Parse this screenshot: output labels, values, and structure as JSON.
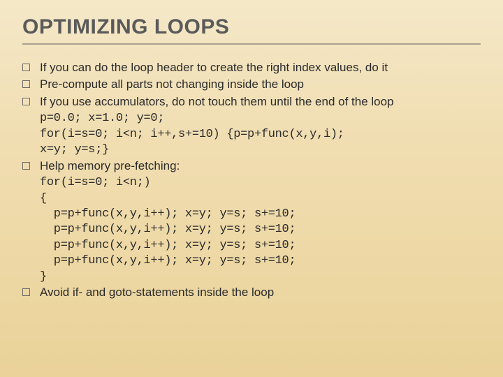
{
  "slide": {
    "title": "OPTIMIZING LOOPS",
    "title_color": "#5a5a5a",
    "title_fontsize": 30,
    "background_gradient": [
      "#f5e8c8",
      "#f0ddb0",
      "#ead299"
    ],
    "body_fontsize": 17,
    "body_color": "#2a2a2a",
    "code_fontfamily": "Courier New",
    "bullet_box_border_color": "#6b6b6b",
    "divider_color": "#a8a090",
    "bullets": [
      {
        "text": "If you can do the loop header to create the right index values, do it"
      },
      {
        "text": "Pre-compute all parts not changing inside the loop"
      },
      {
        "text": "If you use accumulators, do not touch them until the end of the loop",
        "code": "p=0.0; x=1.0; y=0;\nfor(i=s=0; i<n; i++,s+=10) {p=p+func(x,y,i);\nx=y; y=s;}"
      },
      {
        "text": "Help memory pre-fetching:",
        "code": "for(i=s=0; i<n;)\n{\n  p=p+func(x,y,i++); x=y; y=s; s+=10;\n  p=p+func(x,y,i++); x=y; y=s; s+=10;\n  p=p+func(x,y,i++); x=y; y=s; s+=10;\n  p=p+func(x,y,i++); x=y; y=s; s+=10;\n}"
      },
      {
        "text": "Avoid if- and goto-statements inside the loop"
      }
    ]
  }
}
